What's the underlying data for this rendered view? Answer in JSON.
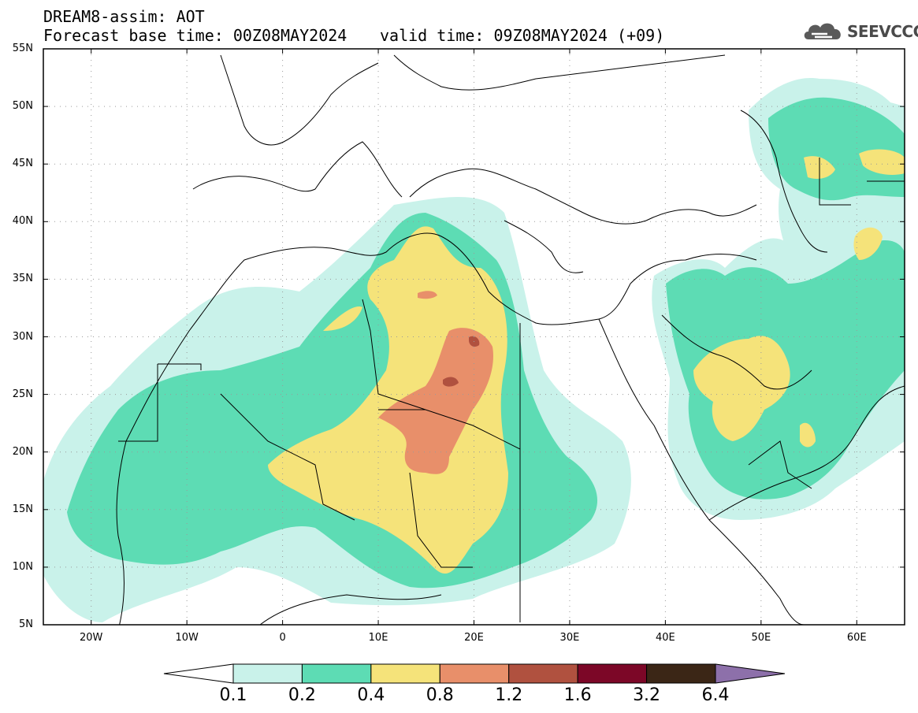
{
  "header": {
    "title": "DREAM8-assim: AOT",
    "base_time": "Forecast base time: 00Z08MAY2024",
    "valid_time": "valid time: 09Z08MAY2024 (+09)",
    "logo_text": "SEEVCCC"
  },
  "map_axes": {
    "lon_range": [
      -25,
      65
    ],
    "lat_range": [
      5,
      55
    ],
    "lat_labels": [
      {
        "lat": 55,
        "text": "55N"
      },
      {
        "lat": 50,
        "text": "50N"
      },
      {
        "lat": 45,
        "text": "45N"
      },
      {
        "lat": 40,
        "text": "40N"
      },
      {
        "lat": 35,
        "text": "35N"
      },
      {
        "lat": 30,
        "text": "30N"
      },
      {
        "lat": 25,
        "text": "25N"
      },
      {
        "lat": 20,
        "text": "20N"
      },
      {
        "lat": 15,
        "text": "15N"
      },
      {
        "lat": 10,
        "text": "10N"
      },
      {
        "lat": 5,
        "text": "5N"
      }
    ],
    "lon_labels": [
      {
        "lon": -20,
        "text": "20W"
      },
      {
        "lon": -10,
        "text": "10W"
      },
      {
        "lon": 0,
        "text": "0"
      },
      {
        "lon": 10,
        "text": "10E"
      },
      {
        "lon": 20,
        "text": "20E"
      },
      {
        "lon": 30,
        "text": "30E"
      },
      {
        "lon": 40,
        "text": "40E"
      },
      {
        "lon": 50,
        "text": "50E"
      },
      {
        "lon": 60,
        "text": "60E"
      }
    ],
    "gridlines": "dotted"
  },
  "legend": {
    "levels": [
      "0.1",
      "0.2",
      "0.4",
      "0.8",
      "1.2",
      "1.6",
      "3.2",
      "6.4"
    ],
    "colors": [
      "#c9f2ea",
      "#5ddcb4",
      "#f5e37a",
      "#e88f6a",
      "#b0513f",
      "#7c0727",
      "#3b2616",
      "#8d70aa"
    ],
    "low_color": "#ffffff"
  }
}
